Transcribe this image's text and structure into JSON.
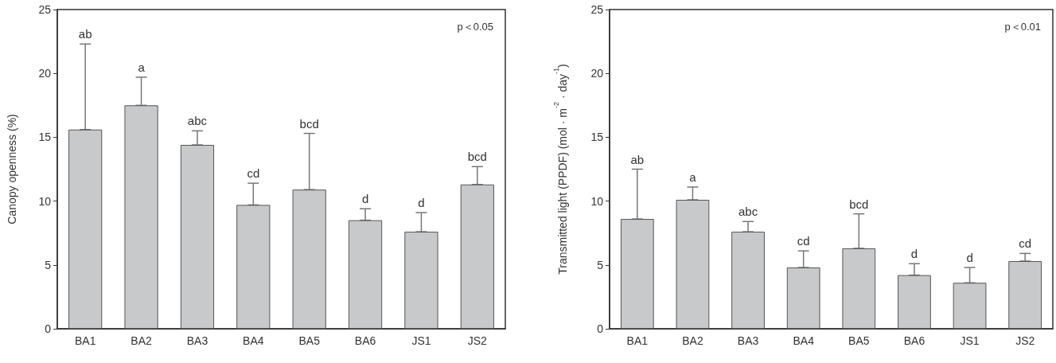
{
  "chart_data": [
    {
      "type": "bar",
      "ylabel": "Canopy openness (%)",
      "categories": [
        "BA1",
        "BA2",
        "BA3",
        "BA4",
        "BA5",
        "BA6",
        "JS1",
        "JS2"
      ],
      "values": [
        15.6,
        17.5,
        14.4,
        9.7,
        10.9,
        8.5,
        7.6,
        11.3
      ],
      "color": "#c8c9cb",
      "errors": [
        [
          15.6,
          22.3
        ],
        [
          17.5,
          19.7
        ],
        [
          14.4,
          15.5
        ],
        [
          9.7,
          11.4
        ],
        [
          10.9,
          15.3
        ],
        [
          8.5,
          9.4
        ],
        [
          7.6,
          9.1
        ],
        [
          11.3,
          12.7
        ]
      ],
      "ylim": [
        0,
        25
      ],
      "yticks": [
        0,
        5,
        10,
        15,
        20,
        25
      ],
      "grid": false,
      "annotations": [
        "p＜0.05",
        {
          "text": "ab",
          "x": "BA1",
          "y": 22.3
        },
        {
          "text": "a",
          "x": "BA2",
          "y": 19.7
        },
        {
          "text": "abc",
          "x": "BA3",
          "y": 15.5
        },
        {
          "text": "cd",
          "x": "BA4",
          "y": 11.4
        },
        {
          "text": "bcd",
          "x": "BA5",
          "y": 15.3
        },
        {
          "text": "d",
          "x": "BA6",
          "y": 9.4
        },
        {
          "text": "d",
          "x": "JS1",
          "y": 9.1
        },
        {
          "text": "bcd",
          "x": "JS2",
          "y": 12.7
        }
      ]
    },
    {
      "type": "bar",
      "ylabel": "Transmitted light (PPDF) (mol · m$^{-2}$ · day$^{-1}$)",
      "categories": [
        "BA1",
        "BA2",
        "BA3",
        "BA4",
        "BA5",
        "BA6",
        "JS1",
        "JS2"
      ],
      "values": [
        8.6,
        10.1,
        7.6,
        4.8,
        6.3,
        4.2,
        3.6,
        5.3
      ],
      "color": "#c8c9cb",
      "errors": [
        [
          8.6,
          12.5
        ],
        [
          10.1,
          11.1
        ],
        [
          7.6,
          8.4
        ],
        [
          4.8,
          6.1
        ],
        [
          6.3,
          9.0
        ],
        [
          4.2,
          5.1
        ],
        [
          3.6,
          4.8
        ],
        [
          5.3,
          5.9
        ]
      ],
      "ylim": [
        0,
        25
      ],
      "yticks": [
        0,
        5,
        10,
        15,
        20,
        25
      ],
      "grid": false,
      "annotations": [
        "p＜0.01",
        {
          "text": "ab",
          "x": "BA1",
          "y": 12.5
        },
        {
          "text": "a",
          "x": "BA2",
          "y": 11.1
        },
        {
          "text": "abc",
          "x": "BA3",
          "y": 8.4
        },
        {
          "text": "cd",
          "x": "BA4",
          "y": 6.1
        },
        {
          "text": "bcd",
          "x": "BA5",
          "y": 9.0
        },
        {
          "text": "d",
          "x": "BA6",
          "y": 5.1
        },
        {
          "text": "d",
          "x": "JS1",
          "y": 4.8
        },
        {
          "text": "cd",
          "x": "JS2",
          "y": 5.9
        }
      ]
    }
  ]
}
